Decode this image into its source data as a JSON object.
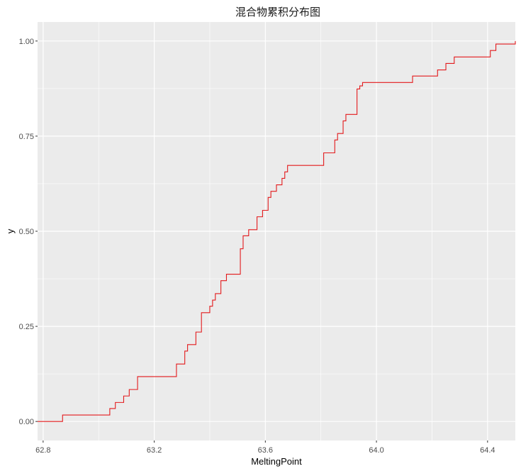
{
  "chart_data": {
    "type": "line",
    "subtype": "step",
    "title": "混合物累积分布图",
    "xlabel": "MeltingPoint",
    "ylabel": "y",
    "xlim": [
      62.78,
      64.5
    ],
    "ylim": [
      -0.05,
      1.05
    ],
    "x_ticks": [
      62.8,
      63.2,
      63.6,
      64.0,
      64.4
    ],
    "x_tick_labels": [
      "62.8",
      "63.2",
      "63.6",
      "64.0",
      "64.4"
    ],
    "y_ticks": [
      0,
      0.25,
      0.5,
      0.75,
      1.0
    ],
    "y_tick_labels": [
      "0.00",
      "0.25",
      "0.50",
      "0.75",
      "1.00"
    ],
    "grid": true,
    "colors": {
      "panel": "#ebebeb",
      "grid": "#ffffff",
      "line": "#e31a1c"
    },
    "series": [
      {
        "x": [
          62.78,
          62.87,
          63.04,
          63.06,
          63.09,
          63.11,
          63.14,
          63.28,
          63.31,
          63.32,
          63.35,
          63.37,
          63.4,
          63.41,
          63.42,
          63.44,
          63.46,
          63.51,
          63.52,
          63.54,
          63.57,
          63.59,
          63.61,
          63.62,
          63.64,
          63.66,
          63.67,
          63.68,
          63.81,
          63.85,
          63.86,
          63.88,
          63.89,
          63.93,
          63.94,
          63.95,
          64.13,
          64.22,
          64.25,
          64.28,
          64.41,
          64.43,
          64.5
        ],
        "y": [
          0.0,
          0.017,
          0.034,
          0.05,
          0.067,
          0.084,
          0.118,
          0.151,
          0.185,
          0.202,
          0.235,
          0.286,
          0.303,
          0.319,
          0.336,
          0.37,
          0.387,
          0.454,
          0.488,
          0.504,
          0.538,
          0.555,
          0.589,
          0.605,
          0.622,
          0.639,
          0.656,
          0.673,
          0.706,
          0.74,
          0.757,
          0.79,
          0.807,
          0.874,
          0.882,
          0.891,
          0.908,
          0.924,
          0.941,
          0.958,
          0.975,
          0.992,
          1.0
        ]
      }
    ]
  }
}
